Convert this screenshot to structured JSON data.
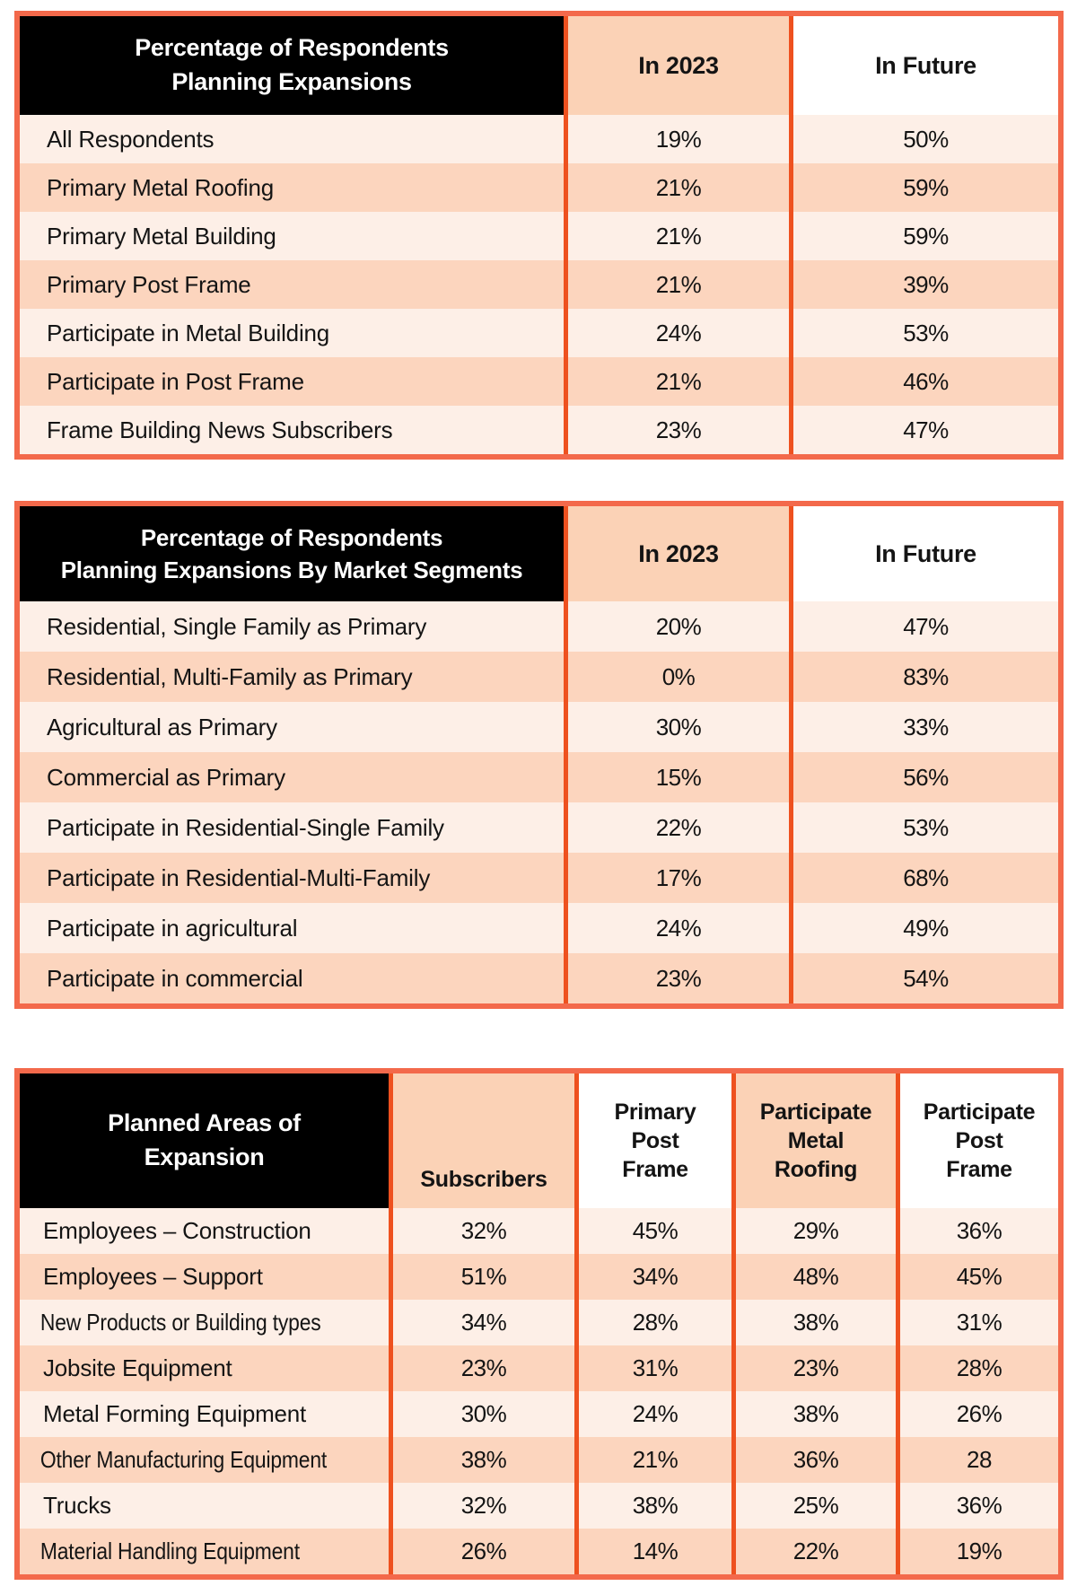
{
  "colors": {
    "outer_border": "#f3694b",
    "divider": "#ee511f",
    "row_light": "#fdefe7",
    "row_dark": "#fcd5be",
    "header_peach": "#fbd2b6",
    "header_white": "#ffffff",
    "header_black_bg": "#000000",
    "header_black_text": "#ffffff",
    "text": "#141414",
    "page_bg": "#ffffff"
  },
  "table1": {
    "title": "Percentage of Respondents\nPlanning Expansions",
    "col_headers": {
      "in2023": "In 2023",
      "infuture": "In Future"
    },
    "rows": [
      {
        "label": "All Respondents",
        "v1": "19%",
        "v2": "50%"
      },
      {
        "label": "Primary Metal Roofing",
        "v1": "21%",
        "v2": "59%"
      },
      {
        "label": "Primary Metal Building",
        "v1": "21%",
        "v2": "59%"
      },
      {
        "label": "Primary Post Frame",
        "v1": "21%",
        "v2": "39%"
      },
      {
        "label": "Participate in Metal Building",
        "v1": "24%",
        "v2": "53%"
      },
      {
        "label": "Participate in Post Frame",
        "v1": "21%",
        "v2": "46%"
      },
      {
        "label": "Frame Building News Subscribers",
        "v1": "23%",
        "v2": "47%"
      }
    ]
  },
  "table2": {
    "title": "Percentage of Respondents\nPlanning Expansions By Market Segments",
    "col_headers": {
      "in2023": "In 2023",
      "infuture": "In Future"
    },
    "rows": [
      {
        "label": "Residential, Single Family as Primary",
        "v1": "20%",
        "v2": "47%"
      },
      {
        "label": "Residential, Multi-Family as Primary",
        "v1": "0%",
        "v2": "83%"
      },
      {
        "label": "Agricultural as Primary",
        "v1": "30%",
        "v2": "33%"
      },
      {
        "label": "Commercial as Primary",
        "v1": "15%",
        "v2": "56%"
      },
      {
        "label": "Participate in Residential-Single Family",
        "v1": "22%",
        "v2": "53%"
      },
      {
        "label": "Participate in Residential-Multi-Family",
        "v1": "17%",
        "v2": "68%"
      },
      {
        "label": "Participate in agricultural",
        "v1": "24%",
        "v2": "49%"
      },
      {
        "label": "Participate in commercial",
        "v1": "23%",
        "v2": "54%"
      }
    ]
  },
  "table3": {
    "title": "Planned Areas of\nExpansion",
    "col_headers": {
      "c1": "Subscribers",
      "c2": "Primary\nPost\nFrame",
      "c3": "Participate\nMetal\nRoofing",
      "c4": "Participate\nPost\nFrame"
    },
    "rows": [
      {
        "label": "Employees – Construction",
        "v1": "32%",
        "v2": "45%",
        "v3": "29%",
        "v4": "36%"
      },
      {
        "label": "Employees – Support",
        "v1": "51%",
        "v2": "34%",
        "v3": "48%",
        "v4": "45%"
      },
      {
        "label": "New Products or Building types",
        "v1": "34%",
        "v2": "28%",
        "v3": "38%",
        "v4": "31%"
      },
      {
        "label": "Jobsite Equipment",
        "v1": "23%",
        "v2": "31%",
        "v3": "23%",
        "v4": "28%"
      },
      {
        "label": "Metal Forming Equipment",
        "v1": "30%",
        "v2": "24%",
        "v3": "38%",
        "v4": "26%"
      },
      {
        "label": "Other Manufacturing Equipment",
        "v1": "38%",
        "v2": "21%",
        "v3": "36%",
        "v4": "28"
      },
      {
        "label": "Trucks",
        "v1": "32%",
        "v2": "38%",
        "v3": "25%",
        "v4": "36%"
      },
      {
        "label": "Material Handling Equipment",
        "v1": "26%",
        "v2": "14%",
        "v3": "22%",
        "v4": "19%"
      }
    ]
  }
}
